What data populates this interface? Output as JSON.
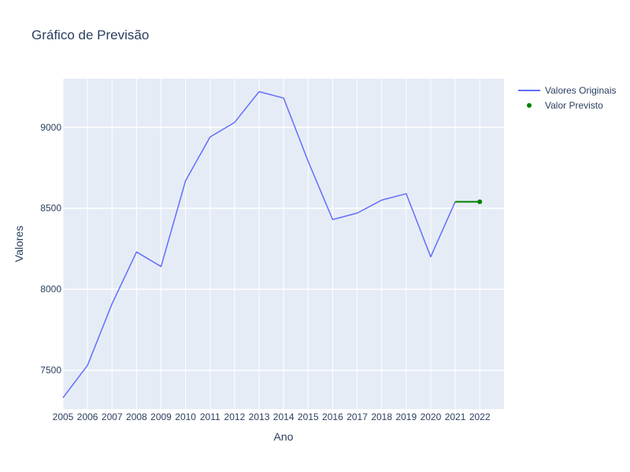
{
  "chart_data": {
    "type": "line",
    "title": "Gráfico de Previsão",
    "xlabel": "Ano",
    "ylabel": "Valores",
    "xlim": [
      2005,
      2022.99
    ],
    "ylim": [
      7260,
      9300
    ],
    "x_ticks": [
      2005,
      2006,
      2007,
      2008,
      2009,
      2010,
      2011,
      2012,
      2013,
      2014,
      2015,
      2016,
      2017,
      2018,
      2019,
      2020,
      2021,
      2022
    ],
    "y_ticks": [
      7500,
      8000,
      8500,
      9000
    ],
    "grid": true,
    "legend_position": "top-right",
    "series": [
      {
        "name": "Valores Originais",
        "mode": "line",
        "color": "#636efa",
        "x": [
          2005,
          2006,
          2007,
          2008,
          2009,
          2010,
          2011,
          2012,
          2013,
          2014,
          2015,
          2016,
          2017,
          2018,
          2019,
          2020,
          2021
        ],
        "y": [
          7330,
          7530,
          7910,
          8230,
          8140,
          8670,
          8940,
          9030,
          9220,
          9180,
          8790,
          8430,
          8470,
          8550,
          8590,
          8200,
          8540
        ]
      },
      {
        "name": "Valor Previsto",
        "mode": "markers",
        "color": "#008000",
        "x": [
          2022
        ],
        "y": [
          8540
        ]
      }
    ],
    "connector": {
      "color": "#008000",
      "x": [
        2021,
        2022
      ],
      "y": [
        8540,
        8540
      ]
    }
  }
}
